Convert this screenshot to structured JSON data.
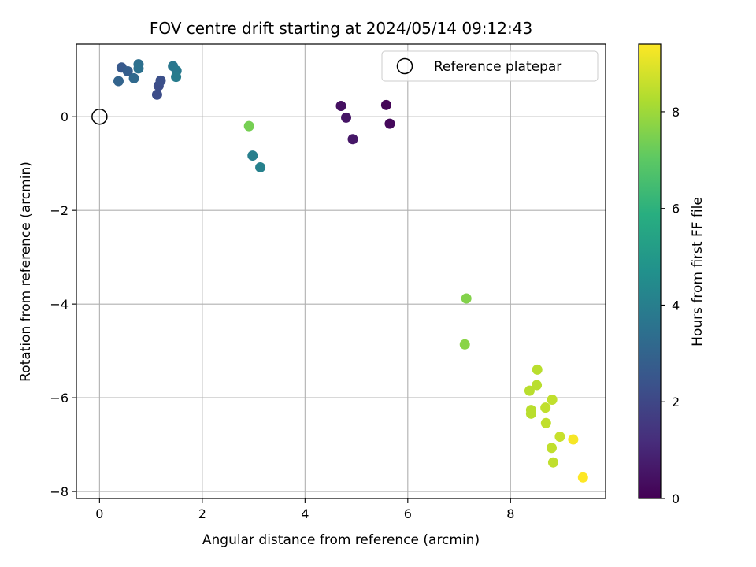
{
  "chart_data": {
    "type": "scatter",
    "title": "FOV centre drift starting at 2024/05/14 09:12:43",
    "xlabel": "Angular distance from reference (arcmin)",
    "ylabel": "Rotation from reference (arcmin)",
    "xlim": [
      -0.45,
      9.85
    ],
    "ylim": [
      -8.15,
      1.55
    ],
    "xticks": [
      0,
      2,
      4,
      6,
      8
    ],
    "yticks": [
      0,
      -2,
      -4,
      -6,
      -8
    ],
    "xtick_labels": [
      "0",
      "2",
      "4",
      "6",
      "8"
    ],
    "ytick_labels": [
      "0",
      "−2",
      "−4",
      "−6",
      "−8"
    ],
    "grid": true,
    "legend": {
      "position": "top-right",
      "entries": [
        "Reference platepar"
      ]
    },
    "reference_point": {
      "x": 0,
      "y": 0
    },
    "colorbar": {
      "label": "Hours from first FF file",
      "colormap": "viridis",
      "range": [
        0,
        9.4
      ],
      "ticks": [
        0,
        2,
        4,
        6,
        8
      ],
      "tick_labels": [
        "0",
        "2",
        "4",
        "6",
        "8"
      ]
    },
    "points": [
      {
        "x": 5.58,
        "y": 0.25,
        "hours": 0.1
      },
      {
        "x": 5.65,
        "y": -0.15,
        "hours": 0.2
      },
      {
        "x": 4.7,
        "y": 0.23,
        "hours": 0.4
      },
      {
        "x": 4.8,
        "y": -0.02,
        "hours": 0.5
      },
      {
        "x": 4.93,
        "y": -0.48,
        "hours": 0.6
      },
      {
        "x": 1.12,
        "y": 0.47,
        "hours": 2.2
      },
      {
        "x": 1.15,
        "y": 0.66,
        "hours": 2.2
      },
      {
        "x": 1.19,
        "y": 0.77,
        "hours": 2.3
      },
      {
        "x": 0.43,
        "y": 1.05,
        "hours": 2.6
      },
      {
        "x": 0.55,
        "y": 0.97,
        "hours": 2.8
      },
      {
        "x": 0.37,
        "y": 0.76,
        "hours": 3.0
      },
      {
        "x": 0.67,
        "y": 0.82,
        "hours": 3.2
      },
      {
        "x": 0.76,
        "y": 1.12,
        "hours": 3.4
      },
      {
        "x": 0.76,
        "y": 1.03,
        "hours": 3.5
      },
      {
        "x": 1.43,
        "y": 1.08,
        "hours": 3.7
      },
      {
        "x": 1.5,
        "y": 0.98,
        "hours": 3.8
      },
      {
        "x": 1.49,
        "y": 0.85,
        "hours": 3.9
      },
      {
        "x": 2.98,
        "y": -0.83,
        "hours": 4.0
      },
      {
        "x": 3.13,
        "y": -1.08,
        "hours": 4.1
      },
      {
        "x": 2.91,
        "y": -0.2,
        "hours": 7.4
      },
      {
        "x": 7.14,
        "y": -3.88,
        "hours": 7.6
      },
      {
        "x": 7.11,
        "y": -4.86,
        "hours": 7.7
      },
      {
        "x": 8.52,
        "y": -5.4,
        "hours": 8.4
      },
      {
        "x": 8.51,
        "y": -5.73,
        "hours": 8.4
      },
      {
        "x": 8.37,
        "y": -5.85,
        "hours": 8.4
      },
      {
        "x": 8.81,
        "y": -6.04,
        "hours": 8.5
      },
      {
        "x": 8.68,
        "y": -6.21,
        "hours": 8.5
      },
      {
        "x": 8.4,
        "y": -6.26,
        "hours": 8.4
      },
      {
        "x": 8.4,
        "y": -6.34,
        "hours": 8.4
      },
      {
        "x": 8.69,
        "y": -6.54,
        "hours": 8.5
      },
      {
        "x": 8.96,
        "y": -6.83,
        "hours": 8.6
      },
      {
        "x": 8.8,
        "y": -7.07,
        "hours": 8.5
      },
      {
        "x": 8.83,
        "y": -7.38,
        "hours": 8.5
      },
      {
        "x": 9.22,
        "y": -6.89,
        "hours": 9.3
      },
      {
        "x": 9.41,
        "y": -7.7,
        "hours": 9.4
      }
    ]
  }
}
